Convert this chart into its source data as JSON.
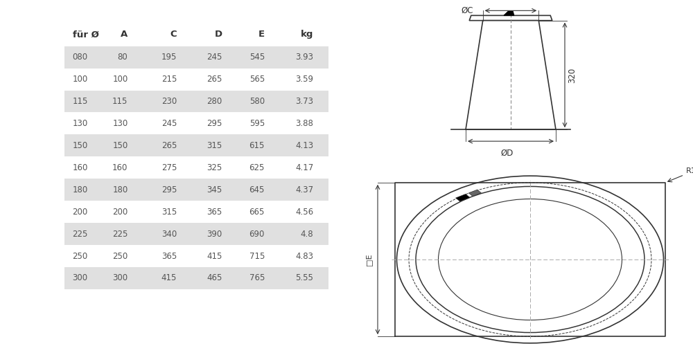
{
  "table_headers": [
    "für Ø",
    "A",
    "C",
    "D",
    "E",
    "kg"
  ],
  "table_rows": [
    [
      "080",
      "80",
      "195",
      "245",
      "545",
      "3.93"
    ],
    [
      "100",
      "100",
      "215",
      "265",
      "565",
      "3.59"
    ],
    [
      "115",
      "115",
      "230",
      "280",
      "580",
      "3.73"
    ],
    [
      "130",
      "130",
      "245",
      "295",
      "595",
      "3.88"
    ],
    [
      "150",
      "150",
      "265",
      "315",
      "615",
      "4.13"
    ],
    [
      "160",
      "160",
      "275",
      "325",
      "625",
      "4.17"
    ],
    [
      "180",
      "180",
      "295",
      "345",
      "645",
      "4.37"
    ],
    [
      "200",
      "200",
      "315",
      "365",
      "665",
      "4.56"
    ],
    [
      "225",
      "225",
      "340",
      "390",
      "690",
      "4.8"
    ],
    [
      "250",
      "250",
      "365",
      "415",
      "715",
      "4.83"
    ],
    [
      "300",
      "300",
      "415",
      "465",
      "765",
      "5.55"
    ]
  ],
  "shaded_rows": [
    0,
    2,
    4,
    6,
    8,
    10
  ],
  "row_bg_color": "#e0e0e0",
  "text_color": "#555555",
  "header_color": "#333333",
  "line_color": "#333333",
  "bg_color": "#ffffff"
}
